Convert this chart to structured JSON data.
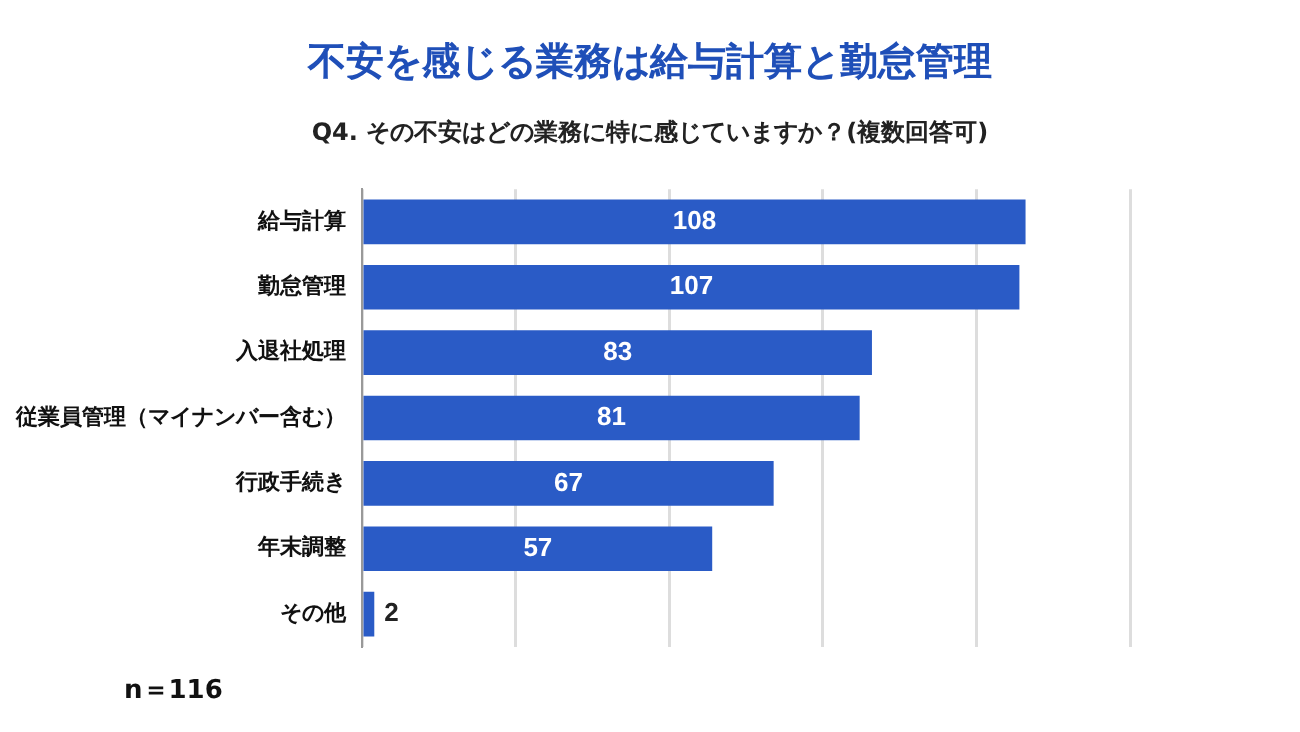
{
  "chart_data": {
    "type": "bar",
    "orientation": "horizontal",
    "title": "不安を感じる業務は給与計算と勤怠管理",
    "subtitle": "Q4. その不安はどの業務に特に感じていますか？(複数回答可)",
    "categories": [
      "給与計算",
      "勤怠管理",
      "入退社処理",
      "従業員管理（マイナンバー含む）",
      "行政手続き",
      "年末調整",
      "その他"
    ],
    "values": [
      108,
      107,
      83,
      81,
      67,
      57,
      2
    ],
    "color": "#2a5bc6",
    "xlim": [
      0,
      125
    ],
    "xticks": [
      {
        "value": 0,
        "label": null
      },
      {
        "value": 25,
        "label": null
      },
      {
        "value": 50,
        "label": null
      },
      {
        "value": 75,
        "label": null
      },
      {
        "value": 100,
        "label": null
      },
      {
        "value": 125,
        "label": null
      }
    ],
    "tick_labels": "y",
    "grid": "x",
    "legend": false,
    "data_labels": true,
    "annotations": [
      "n＝116"
    ]
  }
}
